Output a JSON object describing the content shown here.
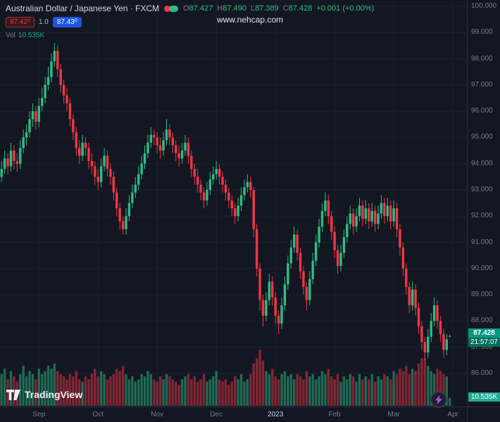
{
  "colors": {
    "background": "#131722",
    "grid": "#1c2130",
    "axis_text": "#787b86",
    "up": "#2ebd85",
    "down": "#f23645",
    "price_tag_bg": "#089981",
    "volume_tag_bg": "#22ab94",
    "buy_blue": "#1e53e5",
    "sell_red": "#f23645"
  },
  "header": {
    "symbol_title": "Australian Dollar / Japanese Yen · FXCM",
    "ohlc": {
      "o_label": "O",
      "o": "87.427",
      "h_label": "H",
      "h": "87.490",
      "l_label": "L",
      "l": "87.389",
      "c_label": "C",
      "c": "87.428",
      "change": "+0.001 (+0.00%)"
    },
    "sell_main": "87.42",
    "sell_sup": "0",
    "spread": "1.0",
    "buy_main": "87.43",
    "buy_sup": "0",
    "vol_label": "Vol",
    "vol_value": "10.535K"
  },
  "watermark": "www.nehcap.com",
  "price_axis": {
    "price_tag": {
      "price": "87.428",
      "countdown": "21:57:07"
    },
    "volume_tag": "10.535K"
  },
  "footer": {
    "logo_text": "TradingView"
  },
  "chart_data": {
    "type": "candlestick",
    "title": "Australian Dollar / Japanese Yen · FXCM",
    "ylim": [
      86,
      100
    ],
    "y_ticks": [
      "100.000",
      "99.000",
      "98.000",
      "97.000",
      "96.000",
      "95.000",
      "94.000",
      "93.000",
      "92.000",
      "91.000",
      "90.000",
      "89.000",
      "88.000",
      "87.000",
      "86.000"
    ],
    "x_ticks": [
      {
        "label": "Sep",
        "index": 12
      },
      {
        "label": "Oct",
        "index": 31
      },
      {
        "label": "Nov",
        "index": 50
      },
      {
        "label": "Dec",
        "index": 69
      },
      {
        "label": "2023",
        "index": 88,
        "major": true
      },
      {
        "label": "Feb",
        "index": 107
      },
      {
        "label": "Mar",
        "index": 126
      },
      {
        "label": "Apr",
        "index": 145
      }
    ],
    "last_price": 87.428,
    "last_volume_k": 10.535,
    "candles": [
      [
        93.5,
        94.1,
        93.3,
        93.8
      ],
      [
        93.8,
        94.5,
        93.6,
        94.2
      ],
      [
        94.2,
        94.4,
        93.6,
        93.9
      ],
      [
        93.9,
        94.8,
        93.7,
        94.5
      ],
      [
        94.5,
        94.7,
        93.8,
        94.1
      ],
      [
        94.1,
        94.4,
        93.7,
        94.0
      ],
      [
        94.0,
        94.9,
        93.8,
        94.6
      ],
      [
        94.6,
        95.3,
        94.4,
        95.0
      ],
      [
        95.0,
        95.5,
        94.7,
        95.2
      ],
      [
        95.2,
        96.0,
        95.0,
        95.7
      ],
      [
        95.7,
        96.3,
        95.4,
        96.0
      ],
      [
        96.0,
        96.2,
        95.3,
        95.6
      ],
      [
        95.6,
        96.5,
        95.4,
        96.2
      ],
      [
        96.2,
        96.9,
        96.0,
        96.5
      ],
      [
        96.5,
        97.3,
        96.3,
        97.0
      ],
      [
        97.0,
        97.7,
        96.8,
        97.3
      ],
      [
        97.3,
        98.2,
        97.1,
        97.9
      ],
      [
        97.9,
        98.6,
        97.7,
        98.3
      ],
      [
        98.3,
        98.5,
        97.3,
        97.6
      ],
      [
        97.6,
        97.8,
        96.7,
        97.0
      ],
      [
        97.0,
        97.2,
        96.3,
        96.6
      ],
      [
        96.6,
        96.9,
        96.0,
        96.3
      ],
      [
        96.3,
        96.5,
        95.4,
        95.7
      ],
      [
        95.7,
        95.9,
        94.9,
        95.2
      ],
      [
        95.2,
        95.4,
        94.3,
        94.6
      ],
      [
        94.6,
        94.9,
        94.0,
        94.3
      ],
      [
        94.3,
        95.1,
        94.1,
        94.8
      ],
      [
        94.8,
        95.0,
        94.3,
        94.6
      ],
      [
        94.6,
        94.8,
        93.8,
        94.1
      ],
      [
        94.1,
        94.4,
        93.6,
        93.9
      ],
      [
        93.9,
        94.1,
        93.2,
        93.5
      ],
      [
        93.5,
        93.8,
        93.0,
        93.3
      ],
      [
        93.3,
        94.2,
        93.1,
        93.9
      ],
      [
        93.9,
        94.6,
        93.7,
        94.3
      ],
      [
        94.3,
        94.5,
        93.5,
        93.8
      ],
      [
        93.8,
        94.0,
        93.2,
        93.5
      ],
      [
        93.5,
        93.7,
        92.6,
        92.9
      ],
      [
        92.9,
        93.1,
        92.0,
        92.3
      ],
      [
        92.3,
        92.5,
        91.5,
        91.8
      ],
      [
        91.8,
        92.0,
        91.3,
        91.5
      ],
      [
        91.5,
        92.3,
        91.3,
        92.0
      ],
      [
        92.0,
        92.8,
        91.8,
        92.5
      ],
      [
        92.5,
        93.2,
        92.3,
        92.9
      ],
      [
        92.9,
        93.5,
        92.7,
        93.2
      ],
      [
        93.2,
        93.9,
        93.0,
        93.6
      ],
      [
        93.6,
        94.3,
        93.4,
        94.0
      ],
      [
        94.0,
        94.7,
        93.8,
        94.4
      ],
      [
        94.4,
        95.1,
        94.2,
        94.8
      ],
      [
        94.8,
        95.4,
        94.6,
        95.1
      ],
      [
        95.1,
        95.3,
        94.7,
        95.0
      ],
      [
        95.0,
        95.2,
        94.4,
        94.7
      ],
      [
        94.7,
        95.0,
        94.2,
        94.5
      ],
      [
        94.5,
        95.2,
        94.3,
        94.9
      ],
      [
        94.9,
        95.7,
        94.7,
        95.3
      ],
      [
        95.3,
        95.5,
        94.7,
        95.0
      ],
      [
        95.0,
        95.2,
        94.4,
        94.7
      ],
      [
        94.7,
        94.9,
        94.1,
        94.4
      ],
      [
        94.4,
        94.7,
        93.9,
        94.2
      ],
      [
        94.2,
        94.8,
        94.0,
        94.5
      ],
      [
        94.5,
        95.1,
        94.3,
        94.8
      ],
      [
        94.8,
        95.0,
        94.0,
        94.3
      ],
      [
        94.3,
        94.5,
        93.5,
        93.8
      ],
      [
        93.8,
        94.0,
        93.2,
        93.5
      ],
      [
        93.5,
        93.8,
        92.9,
        93.2
      ],
      [
        93.2,
        93.4,
        92.6,
        92.9
      ],
      [
        92.9,
        93.1,
        92.3,
        92.6
      ],
      [
        92.6,
        93.3,
        92.4,
        93.0
      ],
      [
        93.0,
        93.7,
        92.8,
        93.4
      ],
      [
        93.4,
        93.9,
        93.2,
        93.6
      ],
      [
        93.6,
        94.1,
        93.4,
        93.8
      ],
      [
        93.8,
        94.0,
        93.2,
        93.5
      ],
      [
        93.5,
        93.7,
        92.9,
        93.2
      ],
      [
        93.2,
        93.4,
        92.6,
        92.9
      ],
      [
        92.9,
        93.1,
        92.3,
        92.6
      ],
      [
        92.6,
        92.8,
        92.0,
        92.3
      ],
      [
        92.3,
        92.5,
        91.7,
        92.0
      ],
      [
        92.0,
        92.7,
        91.8,
        92.4
      ],
      [
        92.4,
        93.1,
        92.2,
        92.8
      ],
      [
        92.8,
        93.4,
        92.6,
        93.1
      ],
      [
        93.1,
        93.6,
        92.9,
        93.3
      ],
      [
        93.3,
        93.5,
        92.7,
        93.0
      ],
      [
        93.0,
        93.1,
        91.2,
        91.5
      ],
      [
        91.5,
        91.7,
        89.7,
        90.0
      ],
      [
        90.0,
        90.2,
        88.4,
        88.8
      ],
      [
        88.8,
        89.0,
        87.8,
        88.2
      ],
      [
        88.2,
        89.1,
        88.0,
        88.8
      ],
      [
        88.8,
        89.8,
        88.6,
        89.5
      ],
      [
        89.5,
        89.7,
        88.6,
        88.9
      ],
      [
        88.9,
        89.1,
        87.9,
        88.2
      ],
      [
        88.2,
        88.4,
        87.5,
        87.9
      ],
      [
        87.9,
        88.9,
        87.7,
        88.6
      ],
      [
        88.6,
        89.7,
        88.4,
        89.4
      ],
      [
        89.4,
        90.5,
        89.2,
        90.2
      ],
      [
        90.2,
        91.1,
        90.0,
        90.8
      ],
      [
        90.8,
        91.6,
        90.6,
        91.3
      ],
      [
        91.3,
        91.5,
        90.3,
        90.6
      ],
      [
        90.6,
        90.8,
        89.6,
        89.9
      ],
      [
        89.9,
        90.1,
        89.0,
        89.3
      ],
      [
        89.3,
        89.5,
        88.4,
        88.8
      ],
      [
        88.8,
        89.9,
        88.6,
        89.6
      ],
      [
        89.6,
        90.6,
        89.4,
        90.3
      ],
      [
        90.3,
        91.3,
        90.1,
        91.0
      ],
      [
        91.0,
        91.9,
        90.8,
        91.6
      ],
      [
        91.6,
        92.5,
        91.4,
        92.2
      ],
      [
        92.2,
        92.9,
        92.0,
        92.6
      ],
      [
        92.6,
        92.8,
        91.7,
        92.0
      ],
      [
        92.0,
        92.2,
        91.1,
        91.4
      ],
      [
        91.4,
        91.6,
        90.4,
        90.7
      ],
      [
        90.7,
        90.9,
        89.8,
        90.1
      ],
      [
        90.1,
        90.9,
        89.9,
        90.6
      ],
      [
        90.6,
        91.5,
        90.4,
        91.2
      ],
      [
        91.2,
        92.0,
        91.0,
        91.7
      ],
      [
        91.7,
        92.4,
        91.5,
        92.1
      ],
      [
        92.1,
        92.3,
        91.3,
        91.6
      ],
      [
        91.6,
        92.3,
        91.4,
        92.0
      ],
      [
        92.0,
        92.7,
        91.8,
        92.4
      ],
      [
        92.4,
        92.6,
        91.6,
        91.9
      ],
      [
        91.9,
        92.6,
        91.7,
        92.3
      ],
      [
        92.3,
        92.5,
        91.5,
        91.8
      ],
      [
        91.8,
        92.5,
        91.6,
        92.2
      ],
      [
        92.2,
        92.4,
        91.4,
        91.7
      ],
      [
        91.7,
        92.4,
        91.5,
        92.1
      ],
      [
        92.1,
        92.8,
        91.9,
        92.5
      ],
      [
        92.5,
        92.7,
        91.7,
        92.0
      ],
      [
        92.0,
        92.7,
        91.8,
        92.4
      ],
      [
        92.4,
        92.6,
        91.5,
        91.8
      ],
      [
        91.8,
        92.6,
        91.6,
        92.3
      ],
      [
        92.3,
        92.5,
        91.2,
        91.5
      ],
      [
        91.5,
        91.7,
        90.5,
        90.8
      ],
      [
        90.8,
        91.0,
        89.7,
        90.0
      ],
      [
        90.0,
        90.2,
        89.0,
        89.3
      ],
      [
        89.3,
        89.5,
        88.3,
        88.6
      ],
      [
        88.6,
        89.5,
        88.4,
        89.2
      ],
      [
        89.2,
        89.4,
        88.2,
        88.5
      ],
      [
        88.5,
        88.7,
        87.5,
        87.8
      ],
      [
        87.8,
        88.0,
        86.9,
        87.2
      ],
      [
        87.2,
        87.4,
        86.5,
        86.8
      ],
      [
        86.8,
        87.7,
        86.6,
        87.4
      ],
      [
        87.4,
        88.3,
        87.2,
        88.0
      ],
      [
        88.0,
        88.9,
        87.8,
        88.6
      ],
      [
        88.6,
        88.8,
        87.7,
        88.0
      ],
      [
        88.0,
        88.2,
        87.2,
        87.5
      ],
      [
        87.5,
        87.7,
        86.6,
        86.9
      ],
      [
        86.9,
        87.5,
        86.7,
        87.3
      ],
      [
        87.427,
        87.49,
        87.389,
        87.428
      ]
    ],
    "volumes_k": [
      42,
      49,
      35,
      46,
      39,
      32,
      42,
      53,
      39,
      46,
      42,
      35,
      49,
      42,
      46,
      53,
      49,
      56,
      46,
      42,
      39,
      35,
      42,
      39,
      46,
      35,
      32,
      39,
      35,
      42,
      49,
      39,
      46,
      42,
      35,
      39,
      42,
      49,
      46,
      53,
      42,
      35,
      39,
      32,
      35,
      42,
      39,
      46,
      42,
      35,
      32,
      39,
      35,
      42,
      39,
      35,
      32,
      28,
      35,
      39,
      42,
      35,
      39,
      32,
      35,
      42,
      32,
      35,
      39,
      46,
      35,
      32,
      35,
      28,
      32,
      39,
      35,
      42,
      32,
      35,
      42,
      56,
      63,
      74,
      60,
      46,
      42,
      49,
      39,
      35,
      42,
      46,
      39,
      42,
      35,
      42,
      39,
      35,
      46,
      39,
      42,
      35,
      39,
      46,
      42,
      49,
      39,
      35,
      42,
      32,
      39,
      35,
      42,
      39,
      32,
      42,
      35,
      39,
      35,
      42,
      32,
      39,
      35,
      42,
      39,
      35,
      46,
      42,
      49,
      46,
      53,
      42,
      49,
      46,
      56,
      63,
      63,
      53,
      46,
      42,
      49,
      46,
      42,
      39,
      10.535
    ]
  }
}
